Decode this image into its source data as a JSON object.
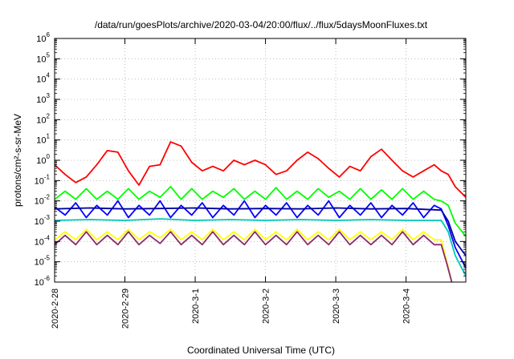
{
  "chart_data": {
    "type": "line",
    "title": "/data/run/goesPlots/archive/2020-03-04/20:00/flux/../flux/5daysMoonFluxes.txt",
    "xlabel": "Coordinated Universal Time (UTC)",
    "ylabel": "protons/cm²-s-sr-MeV",
    "y_scale": "log",
    "ylim": [
      1e-06,
      1000000.0
    ],
    "y_ticks": [
      {
        "value": 1e-06,
        "base": "10",
        "exp": "-6"
      },
      {
        "value": 1e-05,
        "base": "10",
        "exp": "-5"
      },
      {
        "value": 0.0001,
        "base": "10",
        "exp": "-4"
      },
      {
        "value": 0.001,
        "base": "10",
        "exp": "-3"
      },
      {
        "value": 0.01,
        "base": "10",
        "exp": "-2"
      },
      {
        "value": 0.1,
        "base": "10",
        "exp": "-1"
      },
      {
        "value": 1.0,
        "base": "10",
        "exp": "0"
      },
      {
        "value": 10.0,
        "base": "10",
        "exp": "1"
      },
      {
        "value": 100.0,
        "base": "10",
        "exp": "2"
      },
      {
        "value": 1000.0,
        "base": "10",
        "exp": "3"
      },
      {
        "value": 10000.0,
        "base": "10",
        "exp": "4"
      },
      {
        "value": 100000.0,
        "base": "10",
        "exp": "5"
      },
      {
        "value": 1000000.0,
        "base": "10",
        "exp": "6"
      }
    ],
    "xlim": [
      0,
      5.85
    ],
    "x_units": "days since 2020-02-28",
    "x_ticks": [
      {
        "value": 0,
        "label": "2020-2-28"
      },
      {
        "value": 1,
        "label": "2020-2-29"
      },
      {
        "value": 2,
        "label": "2020-3-1"
      },
      {
        "value": 3,
        "label": "2020-3-2"
      },
      {
        "value": 4,
        "label": "2020-3-3"
      },
      {
        "value": 5,
        "label": "2020-3-4"
      }
    ],
    "grid": true,
    "series": [
      {
        "color": "#ff0000",
        "x": [
          0.0,
          0.15,
          0.3,
          0.45,
          0.6,
          0.75,
          0.9,
          1.05,
          1.2,
          1.35,
          1.5,
          1.65,
          1.8,
          1.95,
          2.1,
          2.25,
          2.4,
          2.55,
          2.7,
          2.85,
          3.0,
          3.15,
          3.3,
          3.45,
          3.6,
          3.75,
          3.9,
          4.05,
          4.2,
          4.35,
          4.5,
          4.65,
          4.8,
          4.95,
          5.1,
          5.25,
          5.4,
          5.5,
          5.6,
          5.7,
          5.85
        ],
        "y": [
          0.6,
          0.2,
          0.08,
          0.15,
          0.6,
          3,
          2.5,
          0.3,
          0.06,
          0.5,
          0.6,
          8,
          5,
          0.8,
          0.3,
          0.5,
          0.3,
          1,
          0.6,
          1.0,
          0.6,
          0.2,
          0.3,
          1,
          2.5,
          1.2,
          0.4,
          0.15,
          0.5,
          0.3,
          1.5,
          3.5,
          1,
          0.3,
          0.15,
          0.3,
          0.6,
          0.3,
          0.2,
          0.05,
          0.015
        ]
      },
      {
        "color": "#00ff00",
        "x": [
          0.0,
          0.15,
          0.3,
          0.45,
          0.6,
          0.75,
          0.9,
          1.05,
          1.2,
          1.35,
          1.5,
          1.65,
          1.8,
          1.95,
          2.1,
          2.25,
          2.4,
          2.55,
          2.7,
          2.85,
          3.0,
          3.15,
          3.3,
          3.45,
          3.6,
          3.75,
          3.9,
          4.05,
          4.2,
          4.35,
          4.5,
          4.65,
          4.8,
          4.95,
          5.1,
          5.25,
          5.4,
          5.5,
          5.6,
          5.7,
          5.85
        ],
        "y": [
          0.012,
          0.03,
          0.012,
          0.04,
          0.012,
          0.03,
          0.012,
          0.04,
          0.012,
          0.03,
          0.015,
          0.05,
          0.012,
          0.04,
          0.012,
          0.03,
          0.015,
          0.04,
          0.012,
          0.03,
          0.012,
          0.045,
          0.012,
          0.03,
          0.012,
          0.04,
          0.015,
          0.03,
          0.012,
          0.04,
          0.012,
          0.035,
          0.012,
          0.04,
          0.012,
          0.03,
          0.012,
          0.01,
          0.006,
          0.0008,
          0.00018
        ]
      },
      {
        "color": "#0000ff",
        "x": [
          0.0,
          0.15,
          0.3,
          0.45,
          0.6,
          0.75,
          0.9,
          1.05,
          1.2,
          1.35,
          1.5,
          1.65,
          1.8,
          1.95,
          2.1,
          2.25,
          2.4,
          2.55,
          2.7,
          2.85,
          3.0,
          3.15,
          3.3,
          3.45,
          3.6,
          3.75,
          3.9,
          4.05,
          4.2,
          4.35,
          4.5,
          4.65,
          4.8,
          4.95,
          5.1,
          5.25,
          5.4,
          5.5,
          5.6,
          5.7,
          5.85
        ],
        "y": [
          0.005,
          0.002,
          0.008,
          0.0015,
          0.006,
          0.002,
          0.01,
          0.0015,
          0.006,
          0.002,
          0.01,
          0.0015,
          0.006,
          0.002,
          0.008,
          0.0015,
          0.006,
          0.002,
          0.01,
          0.0015,
          0.006,
          0.002,
          0.008,
          0.0015,
          0.006,
          0.002,
          0.01,
          0.0015,
          0.006,
          0.002,
          0.008,
          0.0015,
          0.006,
          0.002,
          0.008,
          0.0015,
          0.006,
          0.004,
          0.0006,
          5e-05,
          5e-06
        ]
      },
      {
        "color": "#0000a0",
        "x": [
          0.0,
          0.5,
          1.0,
          1.5,
          2.0,
          2.5,
          3.0,
          3.5,
          4.0,
          4.5,
          5.0,
          5.5,
          5.6,
          5.7,
          5.85
        ],
        "y": [
          0.004,
          0.0045,
          0.004,
          0.0042,
          0.0045,
          0.004,
          0.0042,
          0.004,
          0.0045,
          0.004,
          0.0042,
          0.0035,
          0.001,
          0.0001,
          2e-05
        ]
      },
      {
        "color": "#00c8b4",
        "x": [
          0.0,
          0.5,
          1.0,
          1.5,
          2.0,
          2.5,
          3.0,
          3.5,
          4.0,
          4.5,
          5.0,
          5.5,
          5.6,
          5.7,
          5.85
        ],
        "y": [
          0.0011,
          0.0012,
          0.0011,
          0.0013,
          0.0011,
          0.0012,
          0.0011,
          0.0012,
          0.0011,
          0.0012,
          0.0011,
          0.0011,
          0.0003,
          2e-05,
          2e-06
        ]
      },
      {
        "color": "#ffff00",
        "x": [
          0.0,
          0.15,
          0.3,
          0.45,
          0.6,
          0.75,
          0.9,
          1.05,
          1.2,
          1.35,
          1.5,
          1.65,
          1.8,
          1.95,
          2.1,
          2.25,
          2.4,
          2.55,
          2.7,
          2.85,
          3.0,
          3.15,
          3.3,
          3.45,
          3.6,
          3.75,
          3.9,
          4.05,
          4.2,
          4.35,
          4.5,
          4.65,
          4.8,
          4.95,
          5.1,
          5.25,
          5.4,
          5.5,
          5.58,
          5.65
        ],
        "y": [
          0.00012,
          0.0003,
          0.00012,
          0.0004,
          0.00012,
          0.0003,
          0.00012,
          0.0004,
          0.00012,
          0.0003,
          0.00015,
          0.0004,
          0.00012,
          0.0003,
          0.00012,
          0.0004,
          0.00012,
          0.0003,
          0.00012,
          0.0004,
          0.00012,
          0.0003,
          0.00012,
          0.0004,
          0.00012,
          0.0003,
          0.00012,
          0.0004,
          0.00012,
          0.0003,
          0.00012,
          0.0003,
          0.00012,
          0.0004,
          0.00012,
          0.0003,
          0.00012,
          0.00012,
          1e-05,
          1e-06
        ]
      },
      {
        "color": "#8b2a6e",
        "x": [
          0.0,
          0.15,
          0.3,
          0.45,
          0.6,
          0.75,
          0.9,
          1.05,
          1.2,
          1.35,
          1.5,
          1.65,
          1.8,
          1.95,
          2.1,
          2.25,
          2.4,
          2.55,
          2.7,
          2.85,
          3.0,
          3.15,
          3.3,
          3.45,
          3.6,
          3.75,
          3.9,
          4.05,
          4.2,
          4.35,
          4.5,
          4.65,
          4.8,
          4.95,
          5.1,
          5.25,
          5.4,
          5.5,
          5.58,
          5.65
        ],
        "y": [
          7e-05,
          0.0002,
          7e-05,
          0.0003,
          7e-05,
          0.0002,
          7e-05,
          0.0003,
          7e-05,
          0.0002,
          8e-05,
          0.0003,
          7e-05,
          0.0002,
          7e-05,
          0.0003,
          7e-05,
          0.0002,
          7e-05,
          0.0003,
          7e-05,
          0.0002,
          7e-05,
          0.0003,
          7e-05,
          0.0002,
          7e-05,
          0.0003,
          7e-05,
          0.0002,
          7e-05,
          0.0002,
          7e-05,
          0.0003,
          7e-05,
          0.0002,
          7e-05,
          7e-05,
          8e-06,
          1e-06
        ]
      }
    ]
  }
}
